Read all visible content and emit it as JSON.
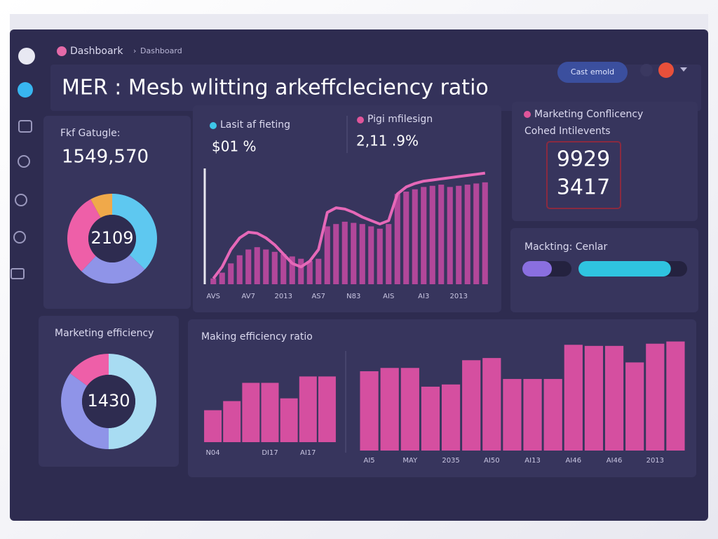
{
  "header": {
    "breadcrumb": [
      "Dashboark",
      "Dashboard"
    ],
    "title": "MER : Mesb wlitting arkeffcleciency ratio",
    "button": "Cast emold"
  },
  "total_card": {
    "label": "Fkf Gatugle:",
    "value": "1549,570",
    "chart_data": {
      "type": "pie",
      "center_label": "2109",
      "values": [
        37,
        25,
        30,
        8
      ],
      "colors": [
        "#5ec8f0",
        "#8f94e8",
        "#ee5fa8",
        "#f0a94a"
      ]
    }
  },
  "trend_card": {
    "metrics": [
      {
        "label": "Lasit af fieting",
        "value": "$01 %",
        "color": "#3ec7e8"
      },
      {
        "label": "Pigi mfilesign",
        "value": "2,11 .9%",
        "color": "#e0559a"
      }
    ],
    "chart_data": {
      "type": "bar-line",
      "categories": [
        "AVS",
        null,
        null,
        null,
        "AV7",
        null,
        null,
        null,
        "2013",
        null,
        null,
        null,
        "AS7",
        null,
        null,
        null,
        "N83",
        null,
        null,
        null,
        "AIS",
        null,
        null,
        null,
        "AI3",
        null,
        null,
        null,
        "2013",
        null,
        null,
        null
      ],
      "ylim": [
        0,
        100
      ],
      "series": [
        {
          "type": "bar",
          "color": "#b2479a",
          "values": [
            5,
            10,
            18,
            25,
            30,
            32,
            30,
            28,
            26,
            24,
            22,
            20,
            22,
            50,
            52,
            54,
            53,
            52,
            50,
            48,
            52,
            78,
            80,
            82,
            84,
            85,
            86,
            84,
            85,
            86,
            87,
            88
          ]
        },
        {
          "type": "line",
          "color": "#e668b8",
          "values": [
            5,
            15,
            30,
            40,
            45,
            44,
            40,
            34,
            26,
            18,
            15,
            20,
            30,
            62,
            66,
            65,
            62,
            58,
            55,
            52,
            55,
            78,
            84,
            87,
            89,
            90,
            91,
            92,
            93,
            94,
            95,
            96
          ]
        }
      ]
    }
  },
  "efficiency_card": {
    "title": "Marketing Conflicency",
    "subtitle": "Cohed Intilevents",
    "values": [
      "9929",
      "3417"
    ]
  },
  "center_card": {
    "title": "Mackting: Cenlar",
    "chart_data": {
      "type": "progress",
      "xlim": [
        0,
        100
      ],
      "values": [
        60,
        85
      ],
      "colors": [
        "#8a6fe0",
        "#2fc4e0"
      ]
    }
  },
  "donut_card": {
    "title": "Marketing efficiency",
    "chart_data": {
      "type": "pie",
      "center_label": "1430",
      "values": [
        50,
        35,
        15
      ],
      "colors": [
        "#a8dcf2",
        "#8f94e8",
        "#ee5fa8"
      ]
    }
  },
  "ratio_card": {
    "title": "Making efficiency ratio",
    "chart_data": [
      {
        "type": "bar",
        "categories": [
          "N04",
          null,
          null,
          "DI17",
          null,
          "AI17",
          null
        ],
        "values": [
          35,
          45,
          65,
          65,
          48,
          72,
          72
        ],
        "color": "#d54fa0",
        "ylim": [
          0,
          100
        ]
      },
      {
        "type": "bar",
        "categories": [
          "AI5",
          null,
          "MAY",
          null,
          "2035",
          null,
          "AI50",
          null,
          "AI13",
          null,
          "AI46",
          null,
          "AI46",
          null,
          "2013",
          null
        ],
        "values": [
          72,
          75,
          75,
          58,
          60,
          82,
          84,
          65,
          65,
          65,
          96,
          95,
          95,
          80,
          97,
          99
        ],
        "color": "#d54fa0",
        "ylim": [
          0,
          100
        ]
      }
    ]
  }
}
